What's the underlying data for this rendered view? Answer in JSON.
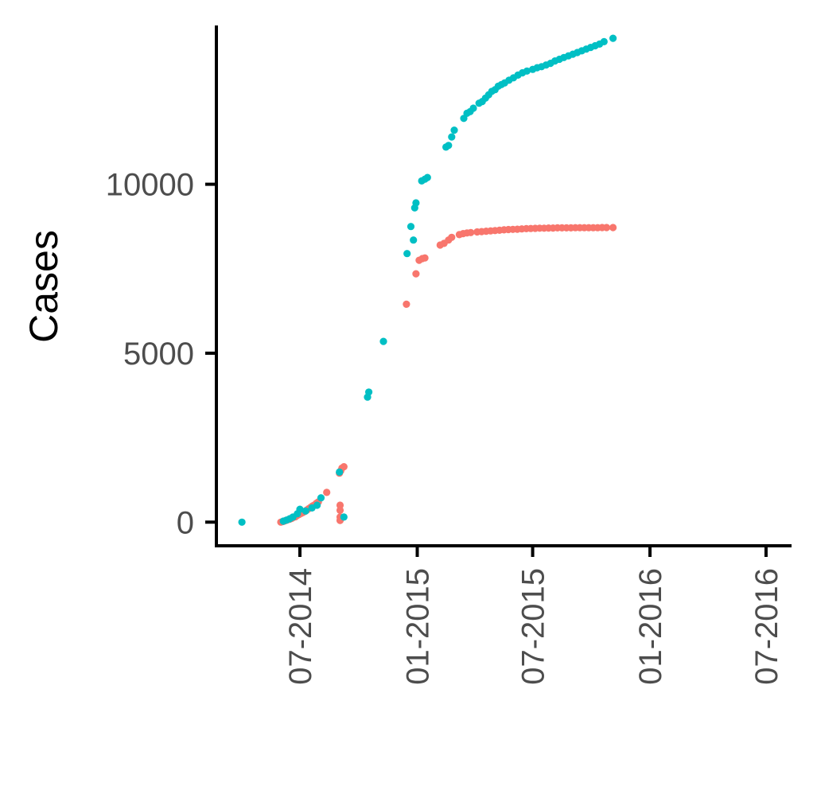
{
  "chart_data": {
    "type": "scatter",
    "title": "",
    "xlabel": "",
    "ylabel": "Cases",
    "x_is_date": true,
    "xlim": [
      "2014-02-20",
      "2016-08-10"
    ],
    "ylim": [
      -700,
      14700
    ],
    "x_ticks": [
      {
        "date": "2014-07-01",
        "label": "07-2014"
      },
      {
        "date": "2015-01-01",
        "label": "01-2015"
      },
      {
        "date": "2015-07-01",
        "label": "07-2015"
      },
      {
        "date": "2016-01-01",
        "label": "01-2016"
      },
      {
        "date": "2016-07-01",
        "label": "07-2016"
      }
    ],
    "y_ticks": [
      {
        "value": 0,
        "label": "0"
      },
      {
        "value": 5000,
        "label": "5000"
      },
      {
        "value": 10000,
        "label": "10000"
      }
    ],
    "grid": false,
    "legend": "none",
    "series": [
      {
        "color": "#F8766D",
        "points": [
          [
            "2014-06-01",
            0
          ],
          [
            "2014-06-03",
            10
          ],
          [
            "2014-06-05",
            20
          ],
          [
            "2014-06-07",
            35
          ],
          [
            "2014-06-09",
            50
          ],
          [
            "2014-06-12",
            70
          ],
          [
            "2014-06-15",
            90
          ],
          [
            "2014-06-18",
            110
          ],
          [
            "2014-06-21",
            140
          ],
          [
            "2014-06-24",
            160
          ],
          [
            "2014-06-27",
            200
          ],
          [
            "2014-06-30",
            230
          ],
          [
            "2014-07-03",
            260
          ],
          [
            "2014-07-06",
            290
          ],
          [
            "2014-07-09",
            320
          ],
          [
            "2014-07-12",
            360
          ],
          [
            "2014-07-15",
            400
          ],
          [
            "2014-07-18",
            440
          ],
          [
            "2014-07-21",
            480
          ],
          [
            "2014-07-24",
            510
          ],
          [
            "2014-07-27",
            560
          ],
          [
            "2014-07-30",
            600
          ],
          [
            "2014-08-12",
            880
          ],
          [
            "2014-09-01",
            1450
          ],
          [
            "2014-09-03",
            1520
          ],
          [
            "2014-09-05",
            1600
          ],
          [
            "2014-09-08",
            1640
          ],
          [
            "2014-09-02",
            500
          ],
          [
            "2014-09-02",
            350
          ],
          [
            "2014-09-02",
            150
          ],
          [
            "2014-09-02",
            50
          ],
          [
            "2014-12-15",
            6450
          ],
          [
            "2014-12-30",
            7350
          ],
          [
            "2015-01-04",
            7750
          ],
          [
            "2015-01-09",
            7800
          ],
          [
            "2015-01-13",
            7820
          ],
          [
            "2015-02-06",
            8200
          ],
          [
            "2015-02-12",
            8250
          ],
          [
            "2015-02-19",
            8350
          ],
          [
            "2015-02-24",
            8430
          ],
          [
            "2015-03-08",
            8510
          ],
          [
            "2015-03-14",
            8540
          ],
          [
            "2015-03-20",
            8560
          ],
          [
            "2015-03-26",
            8570
          ],
          [
            "2015-04-05",
            8590
          ],
          [
            "2015-04-12",
            8600
          ],
          [
            "2015-04-19",
            8610
          ],
          [
            "2015-04-26",
            8620
          ],
          [
            "2015-05-03",
            8630
          ],
          [
            "2015-05-10",
            8640
          ],
          [
            "2015-05-17",
            8650
          ],
          [
            "2015-05-24",
            8660
          ],
          [
            "2015-05-31",
            8665
          ],
          [
            "2015-06-07",
            8670
          ],
          [
            "2015-06-14",
            8680
          ],
          [
            "2015-06-21",
            8685
          ],
          [
            "2015-06-28",
            8690
          ],
          [
            "2015-07-05",
            8695
          ],
          [
            "2015-07-12",
            8700
          ],
          [
            "2015-07-19",
            8700
          ],
          [
            "2015-07-26",
            8705
          ],
          [
            "2015-08-02",
            8705
          ],
          [
            "2015-08-09",
            8710
          ],
          [
            "2015-08-16",
            8710
          ],
          [
            "2015-08-23",
            8710
          ],
          [
            "2015-08-30",
            8710
          ],
          [
            "2015-09-06",
            8715
          ],
          [
            "2015-09-13",
            8715
          ],
          [
            "2015-09-20",
            8715
          ],
          [
            "2015-09-27",
            8715
          ],
          [
            "2015-10-04",
            8715
          ],
          [
            "2015-10-11",
            8715
          ],
          [
            "2015-10-18",
            8720
          ],
          [
            "2015-10-25",
            8720
          ],
          [
            "2015-11-04",
            8720
          ]
        ]
      },
      {
        "color": "#00BFC4",
        "points": [
          [
            "2014-04-01",
            0
          ],
          [
            "2014-06-05",
            30
          ],
          [
            "2014-06-10",
            60
          ],
          [
            "2014-06-15",
            100
          ],
          [
            "2014-06-20",
            150
          ],
          [
            "2014-06-27",
            250
          ],
          [
            "2014-07-01",
            380
          ],
          [
            "2014-07-10",
            330
          ],
          [
            "2014-07-20",
            420
          ],
          [
            "2014-07-28",
            500
          ],
          [
            "2014-08-03",
            720
          ],
          [
            "2014-09-01",
            1480
          ],
          [
            "2014-09-08",
            150
          ],
          [
            "2014-10-15",
            3700
          ],
          [
            "2014-10-17",
            3850
          ],
          [
            "2014-11-09",
            5350
          ],
          [
            "2014-12-16",
            7950
          ],
          [
            "2014-12-22",
            8750
          ],
          [
            "2014-12-26",
            8350
          ],
          [
            "2014-12-28",
            9300
          ],
          [
            "2014-12-30",
            9450
          ],
          [
            "2015-01-08",
            10100
          ],
          [
            "2015-01-13",
            10150
          ],
          [
            "2015-01-17",
            10200
          ],
          [
            "2015-02-15",
            11100
          ],
          [
            "2015-02-19",
            11150
          ],
          [
            "2015-02-24",
            11400
          ],
          [
            "2015-02-28",
            11600
          ],
          [
            "2015-03-15",
            11950
          ],
          [
            "2015-03-20",
            12100
          ],
          [
            "2015-03-25",
            12150
          ],
          [
            "2015-03-30",
            12250
          ],
          [
            "2015-04-08",
            12400
          ],
          [
            "2015-04-13",
            12450
          ],
          [
            "2015-04-18",
            12550
          ],
          [
            "2015-04-23",
            12650
          ],
          [
            "2015-04-28",
            12750
          ],
          [
            "2015-05-03",
            12800
          ],
          [
            "2015-05-08",
            12900
          ],
          [
            "2015-05-13",
            12950
          ],
          [
            "2015-05-18",
            13000
          ],
          [
            "2015-05-25",
            13080
          ],
          [
            "2015-06-01",
            13150
          ],
          [
            "2015-06-08",
            13230
          ],
          [
            "2015-06-15",
            13300
          ],
          [
            "2015-06-22",
            13350
          ],
          [
            "2015-07-01",
            13400
          ],
          [
            "2015-07-08",
            13450
          ],
          [
            "2015-07-15",
            13480
          ],
          [
            "2015-07-22",
            13530
          ],
          [
            "2015-07-29",
            13580
          ],
          [
            "2015-08-05",
            13650
          ],
          [
            "2015-08-12",
            13700
          ],
          [
            "2015-08-19",
            13750
          ],
          [
            "2015-08-26",
            13800
          ],
          [
            "2015-09-02",
            13850
          ],
          [
            "2015-09-09",
            13900
          ],
          [
            "2015-09-16",
            13950
          ],
          [
            "2015-09-23",
            14000
          ],
          [
            "2015-09-30",
            14050
          ],
          [
            "2015-10-07",
            14100
          ],
          [
            "2015-10-14",
            14150
          ],
          [
            "2015-10-21",
            14220
          ],
          [
            "2015-11-04",
            14320
          ]
        ]
      }
    ]
  }
}
